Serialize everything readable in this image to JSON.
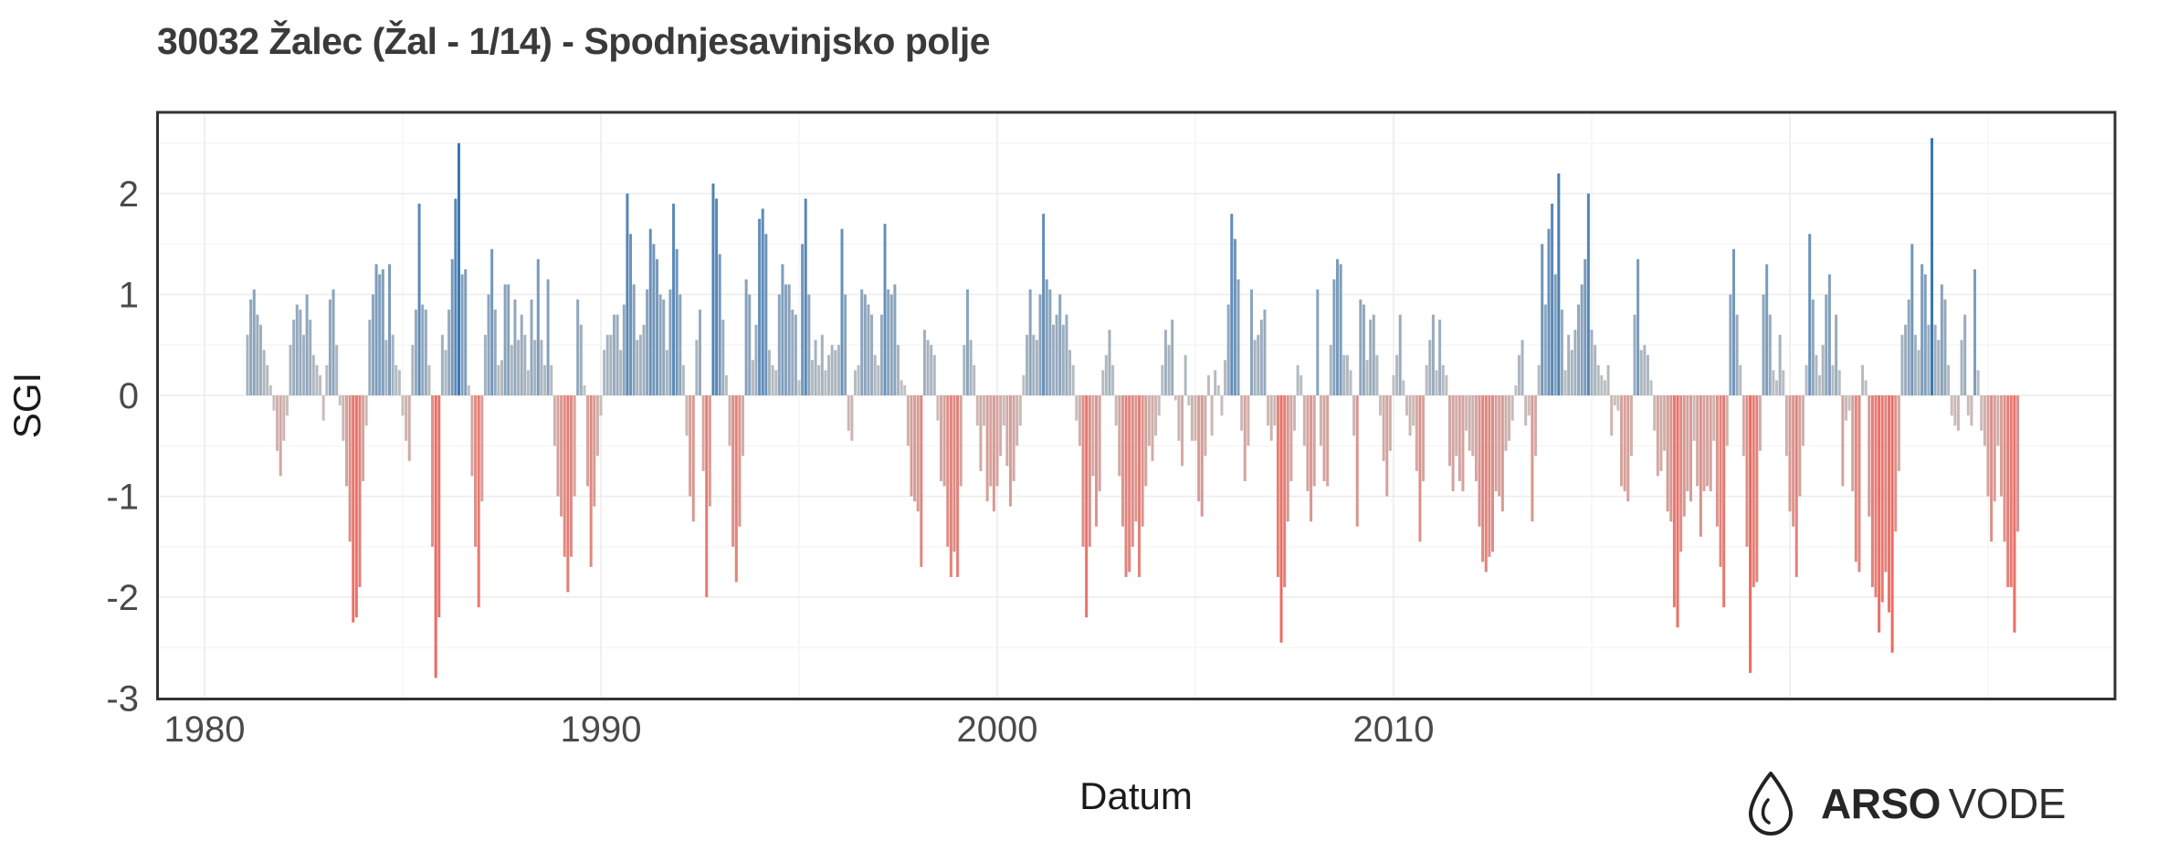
{
  "title": "30032 Žalec (Žal - 1/14) - Spodnjesavinjsko polje",
  "branding": {
    "icon": "water-drop-icon",
    "text_bold": "ARSO",
    "text_regular": "VODE"
  },
  "chart_data": {
    "type": "bar",
    "title": "30032 Žalec (Žal - 1/14) - Spodnjesavinjsko polje",
    "xlabel": "Datum",
    "ylabel": "SGI",
    "x_tick_labels": [
      "1980",
      "1990",
      "2000",
      "2010"
    ],
    "x_tick_years": [
      1980,
      1990,
      2000,
      2010
    ],
    "y_ticks": [
      2,
      1,
      0,
      -1,
      -2,
      -3
    ],
    "ylim": [
      -3,
      2.8
    ],
    "grid": "on",
    "legend": "none",
    "frequency": "monthly",
    "series_start": "1981-02",
    "series_end": "2025-10",
    "colors": {
      "positive_max": "#3877b4",
      "negative_max": "#ee695f",
      "near_zero": "#c6c4c2",
      "panel_border": "#333333",
      "grid_major": "#ececec",
      "grid_minor": "#f6f6f6",
      "axis_text": "#4a4a4a"
    },
    "values_by_year": {
      "1981": [
        0.6,
        0.95,
        1.05,
        0.8,
        0.7,
        0.45,
        0.3,
        0.1,
        -0.15,
        -0.55,
        -0.8
      ],
      "1982": [
        -0.45,
        -0.2,
        0.5,
        0.75,
        0.9,
        0.85,
        0.6,
        1.0,
        0.75,
        0.4,
        0.3,
        0.2
      ],
      "1983": [
        -0.25,
        0.3,
        0.95,
        1.05,
        0.5,
        -0.1,
        -0.45,
        -0.9,
        -1.45,
        -2.25,
        -2.2,
        -1.9
      ],
      "1984": [
        -0.85,
        -0.3,
        0.75,
        1.0,
        1.3,
        1.2,
        1.25,
        0.55,
        1.3,
        0.6,
        0.3,
        0.25
      ],
      "1985": [
        -0.2,
        -0.45,
        -0.65,
        0.5,
        0.85,
        1.9,
        0.9,
        0.85,
        0.3,
        -1.5,
        -2.8,
        -2.2
      ],
      "1986": [
        0.6,
        0.45,
        0.85,
        1.35,
        1.95,
        2.5,
        1.2,
        1.25,
        0.1,
        -0.8,
        -1.5,
        -2.1
      ],
      "1987": [
        -1.05,
        0.6,
        1.0,
        1.45,
        0.85,
        0.3,
        0.35,
        1.1,
        1.1,
        0.5,
        0.95,
        0.55
      ],
      "1988": [
        0.8,
        0.6,
        0.25,
        0.95,
        0.55,
        1.35,
        0.55,
        0.3,
        1.15,
        0.3,
        -0.5,
        -1.0
      ],
      "1989": [
        -1.2,
        -1.6,
        -1.95,
        -1.6,
        -1.0,
        0.95,
        0.7,
        0.1,
        -0.9,
        -1.7,
        -1.1,
        -0.6
      ],
      "1990": [
        -0.2,
        0.45,
        0.6,
        0.6,
        0.8,
        0.8,
        0.45,
        0.9,
        2.0,
        1.6,
        1.1,
        0.55
      ],
      "1991": [
        0.6,
        0.7,
        1.05,
        1.65,
        1.5,
        1.35,
        1.0,
        0.95,
        0.45,
        1.05,
        1.9,
        1.45
      ],
      "1992": [
        1.0,
        0.3,
        -0.4,
        -1.0,
        -1.25,
        0.55,
        0.85,
        -0.75,
        -2.0,
        -1.1,
        2.1,
        1.95
      ],
      "1993": [
        1.4,
        0.75,
        0.2,
        -0.5,
        -1.5,
        -1.85,
        -1.3,
        -0.6,
        1.15,
        1.0,
        0.35,
        0.7
      ],
      "1994": [
        1.75,
        1.85,
        1.6,
        0.45,
        0.3,
        0.25,
        1.0,
        1.3,
        1.1,
        1.1,
        0.85,
        0.8
      ],
      "1995": [
        0.15,
        1.5,
        1.95,
        1.0,
        0.35,
        0.55,
        0.3,
        0.6,
        0.25,
        0.4,
        0.5,
        0.45
      ],
      "1996": [
        0.5,
        1.65,
        1.0,
        -0.35,
        -0.45,
        0.25,
        0.3,
        1.05,
        1.0,
        0.9,
        0.8,
        0.4
      ],
      "1997": [
        0.3,
        0.8,
        1.7,
        1.05,
        1.0,
        1.1,
        0.5,
        0.15,
        0.1,
        -0.5,
        -1.0,
        -1.05
      ],
      "1998": [
        -1.15,
        -1.7,
        0.65,
        0.55,
        0.5,
        0.4,
        -0.25,
        -0.85,
        -0.9,
        -1.5,
        -1.8,
        -1.55
      ],
      "1999": [
        -1.8,
        -0.9,
        0.5,
        1.05,
        0.55,
        0.3,
        -0.3,
        -0.75,
        -0.3,
        -1.05,
        -0.9,
        -1.15
      ],
      "2000": [
        -0.9,
        -0.6,
        -0.3,
        -0.7,
        -1.1,
        -0.85,
        -0.5,
        -0.3,
        0.2,
        0.6,
        1.05,
        0.6
      ],
      "2001": [
        0.55,
        1.0,
        1.8,
        1.15,
        1.05,
        0.7,
        0.8,
        1.0,
        0.7,
        0.8,
        0.45,
        0.3
      ],
      "2002": [
        -0.25,
        -0.5,
        -1.5,
        -2.2,
        -1.5,
        -0.8,
        -1.3,
        -0.95,
        0.25,
        0.4,
        0.65,
        0.3
      ],
      "2003": [
        -0.3,
        -0.8,
        -1.3,
        -1.8,
        -1.75,
        -1.5,
        -1.25,
        -1.8,
        -1.3,
        -0.9,
        -0.5,
        -0.65
      ],
      "2004": [
        -0.4,
        -0.2,
        0.3,
        0.65,
        0.5,
        0.75,
        -0.05,
        -0.45,
        -0.7,
        0.4,
        -0.1,
        -0.45
      ],
      "2005": [
        -0.45,
        -1.05,
        -1.2,
        -0.6,
        0.2,
        -0.4,
        0.25,
        0.1,
        -0.2,
        0.35,
        0.9,
        1.8
      ],
      "2006": [
        1.55,
        1.15,
        -0.35,
        -0.85,
        -0.5,
        1.05,
        0.55,
        0.6,
        0.75,
        0.85,
        -0.3,
        -0.45
      ],
      "2007": [
        -0.3,
        -1.8,
        -2.45,
        -1.9,
        -1.25,
        -0.85,
        -0.35,
        0.3,
        0.2,
        -0.5,
        -0.95,
        -1.25
      ],
      "2008": [
        -0.9,
        1.05,
        -0.5,
        -0.85,
        -0.9,
        0.5,
        1.15,
        1.35,
        1.3,
        0.4,
        0.4,
        0.25
      ],
      "2009": [
        -0.4,
        -1.3,
        0.95,
        0.9,
        0.35,
        0.75,
        0.8,
        0.4,
        -0.2,
        -0.65,
        -1.0,
        -0.55
      ],
      "2010": [
        0.2,
        0.4,
        0.8,
        0.15,
        -0.2,
        -0.4,
        -0.3,
        -0.75,
        -1.45,
        -0.85,
        0.3,
        0.55
      ],
      "2011": [
        0.8,
        0.25,
        0.75,
        0.3,
        0.2,
        -0.7,
        -0.95,
        -0.6,
        -0.85,
        -0.95,
        -0.35,
        -0.55
      ],
      "2012": [
        -0.6,
        -0.85,
        -1.3,
        -1.65,
        -1.75,
        -1.6,
        -1.55,
        -0.95,
        -1.0,
        -1.15,
        -0.55,
        -0.45
      ],
      "2013": [
        -0.25,
        0.1,
        0.4,
        0.55,
        -0.3,
        -0.2,
        -1.25,
        -0.6,
        0.3,
        1.5,
        0.9,
        1.65
      ],
      "2014": [
        1.9,
        1.2,
        2.2,
        0.85,
        0.25,
        0.6,
        0.45,
        0.65,
        0.9,
        1.1,
        1.35,
        2.0
      ],
      "2015": [
        0.65,
        0.5,
        0.3,
        0.2,
        0.15,
        0.3,
        -0.4,
        -0.1,
        -0.15,
        -0.9,
        -0.95,
        -1.05
      ],
      "2016": [
        -0.6,
        0.8,
        1.35,
        0.45,
        0.5,
        0.4,
        0.15,
        -0.35,
        -0.8,
        -0.75,
        -0.55,
        -1.15
      ],
      "2017": [
        -1.25,
        -2.1,
        -2.3,
        -1.55,
        -1.2,
        -0.95,
        -1.05,
        -0.45,
        -0.9,
        -1.4,
        -0.95,
        -0.9
      ],
      "2018": [
        -0.95,
        -0.45,
        -1.3,
        -1.7,
        -2.1,
        -0.5,
        1.0,
        1.45,
        0.8,
        0.3,
        -0.6,
        -1.5
      ],
      "2019": [
        -2.75,
        -1.9,
        -1.85,
        -0.55,
        1.0,
        1.3,
        0.8,
        0.25,
        0.15,
        0.6,
        0.25,
        -0.6
      ],
      "2020": [
        -1.15,
        -1.3,
        -1.8,
        -1.0,
        -0.5,
        0.3,
        1.6,
        0.95,
        0.4,
        0.2,
        0.5,
        1.0
      ],
      "2021": [
        1.2,
        0.3,
        0.8,
        0.25,
        -0.9,
        -0.25,
        -0.15,
        -0.95,
        -1.65,
        -1.75,
        0.3,
        0.15
      ],
      "2022": [
        -1.2,
        -1.9,
        -2.0,
        -2.35,
        -2.05,
        -1.75,
        -2.15,
        -2.55,
        -1.35,
        -0.75,
        0.6,
        0.7
      ],
      "2023": [
        0.95,
        1.5,
        0.6,
        0.45,
        1.3,
        1.2,
        0.7,
        2.55,
        0.7,
        0.55,
        1.1,
        0.95
      ],
      "2024": [
        0.3,
        -0.2,
        -0.3,
        -0.35,
        0.55,
        0.8,
        -0.2,
        -0.3,
        1.25,
        0.25,
        -0.35,
        -0.5
      ],
      "2025": [
        -1.0,
        -1.45,
        -1.05,
        -0.5,
        -1.0,
        -1.45,
        -1.9,
        -1.9,
        -2.35,
        -1.35
      ]
    }
  }
}
